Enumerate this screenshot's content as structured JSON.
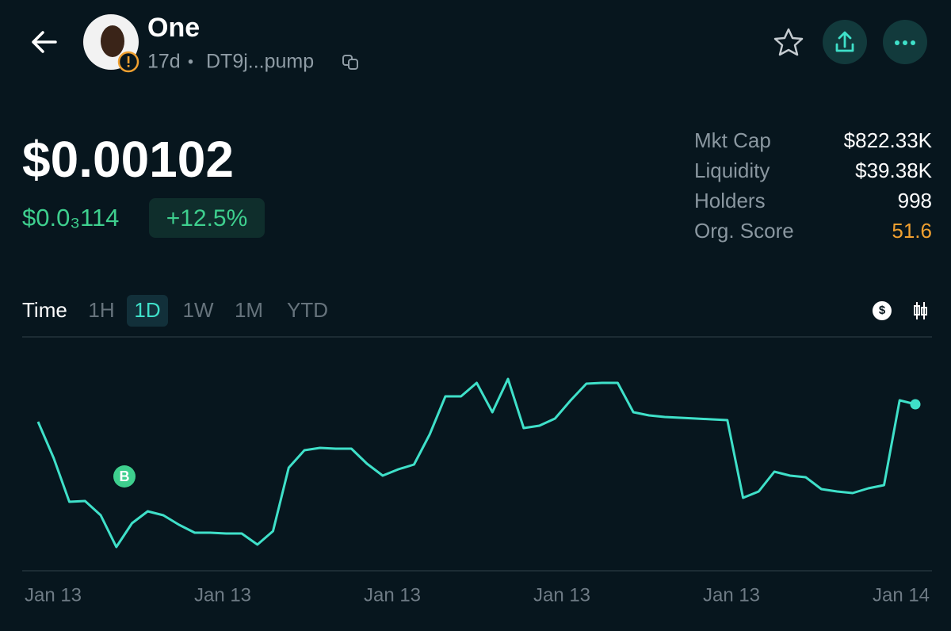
{
  "header": {
    "title": "One",
    "age": "17d",
    "separator": "•",
    "address": "DT9j...pump"
  },
  "price": {
    "main": "$0.00102",
    "sub": "$0.0₃114",
    "change": "+12.5%"
  },
  "stats": [
    {
      "label": "Mkt Cap",
      "value": "$822.33K"
    },
    {
      "label": "Liquidity",
      "value": "$39.38K"
    },
    {
      "label": "Holders",
      "value": "998"
    },
    {
      "label": "Org. Score",
      "value": "51.6"
    }
  ],
  "tabs": {
    "label": "Time",
    "options": [
      "1H",
      "1D",
      "1W",
      "1M",
      "YTD"
    ],
    "selected": "1D"
  },
  "chart_data": {
    "type": "line",
    "color": "#3fe0c9",
    "ylim": [
      0.0004,
      0.0012
    ],
    "values": [
      0.000954,
      0.000816,
      0.000651,
      0.000654,
      0.0006,
      0.00048,
      0.00057,
      0.000615,
      0.0006,
      0.000564,
      0.000534,
      0.000534,
      0.000531,
      0.000531,
      0.000489,
      0.00054,
      0.00078,
      0.000846,
      0.000855,
      0.000852,
      0.000852,
      0.000795,
      0.00075,
      0.000774,
      0.000792,
      0.000906,
      0.00105,
      0.00105,
      0.001101,
      0.00099,
      0.001116,
      0.00093,
      0.000939,
      0.000966,
      0.001035,
      0.001098,
      0.001101,
      0.001101,
      0.00099,
      0.000978,
      0.000972,
      0.000969,
      0.000966,
      0.000963,
      0.00096,
      0.000666,
      0.00069,
      0.000765,
      0.00075,
      0.000744,
      0.000699,
      0.00069,
      0.000684,
      0.000702,
      0.000714,
      0.001035,
      0.00102
    ],
    "x_labels": [
      "Jan 13",
      "Jan 13",
      "Jan 13",
      "Jan 13",
      "Jan 13",
      "Jan 14"
    ],
    "annotations": [
      "B"
    ]
  }
}
